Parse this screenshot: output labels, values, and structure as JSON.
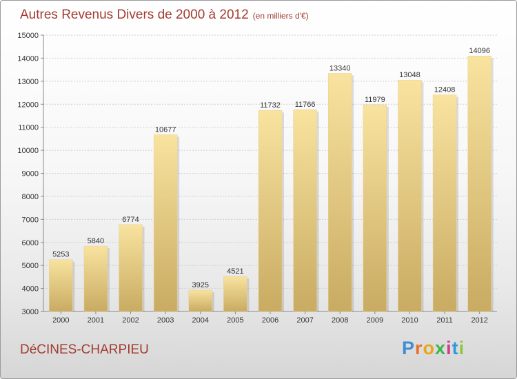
{
  "title": "Autres Revenus Divers de 2000 à 2012",
  "subtitle": "(en milliers d'€)",
  "commune": "DéCINES-CHARPIEU",
  "brand": {
    "letters": [
      "P",
      "r",
      "o",
      "x",
      "i",
      "t",
      "i"
    ],
    "colors": [
      "#3c8fd6",
      "#e8702a",
      "#e8a61c",
      "#3cb64a",
      "#d43a8f",
      "#2f9ad8",
      "#8cc63f"
    ]
  },
  "colors": {
    "title": "#a23b2f",
    "bar_light": "#f8e39f",
    "bar_dark": "#c9ab62",
    "grid": "#cfcfcf"
  },
  "chart_data": {
    "type": "bar",
    "categories": [
      "2000",
      "2001",
      "2002",
      "2003",
      "2004",
      "2005",
      "2006",
      "2007",
      "2008",
      "2009",
      "2010",
      "2011",
      "2012"
    ],
    "values": [
      5253,
      5840,
      6774,
      10677,
      3925,
      4521,
      11732,
      11766,
      13340,
      11979,
      13048,
      12408,
      14096
    ],
    "ylim": [
      3000,
      15000
    ],
    "yticks": [
      "3000",
      "4000",
      "5000",
      "6000",
      "7000",
      "8000",
      "9000",
      "10000",
      "11000",
      "12000",
      "13000",
      "14000",
      "15000"
    ],
    "grid": true
  }
}
